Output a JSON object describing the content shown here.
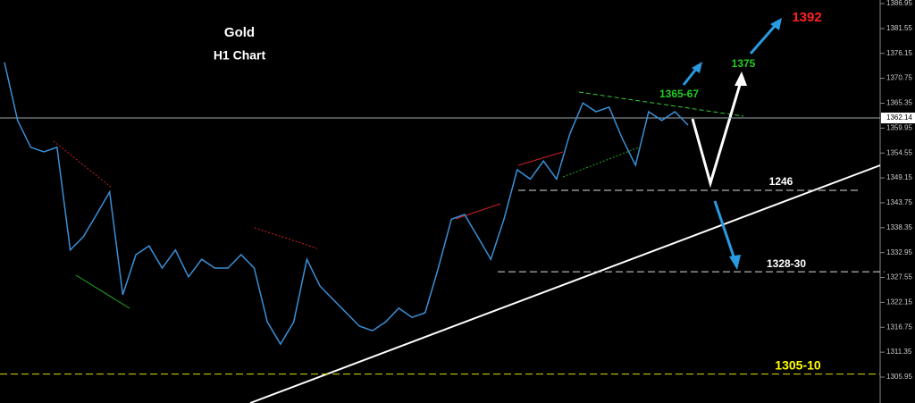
{
  "chart_data": {
    "type": "line",
    "title": "Gold",
    "subtitle": "H1 Chart",
    "values": [
      1374.2,
      1361.6,
      1355.8,
      1354.8,
      1355.8,
      1333.5,
      1336.4,
      1341.2,
      1346.1,
      1323.8,
      1332.5,
      1334.4,
      1329.6,
      1333.5,
      1327.7,
      1331.5,
      1329.6,
      1329.6,
      1332.5,
      1329.6,
      1317.9,
      1313.1,
      1317.9,
      1331.5,
      1325.7,
      1322.8,
      1319.9,
      1317.0,
      1316.0,
      1317.9,
      1320.9,
      1318.9,
      1319.9,
      1329.6,
      1340.2,
      1341.2,
      1336.4,
      1331.5,
      1340.2,
      1350.9,
      1348.9,
      1352.8,
      1348.9,
      1358.6,
      1365.4,
      1363.5,
      1364.5,
      1357.7,
      1351.9,
      1363.5,
      1361.6,
      1363.5,
      1360.6
    ],
    "color": "#3a8fd6",
    "ylim": [
      1300.33,
      1387.73
    ],
    "yticks": [
      1386.95,
      1381.55,
      1376.15,
      1370.75,
      1365.35,
      1359.95,
      1354.55,
      1349.15,
      1343.75,
      1338.35,
      1332.95,
      1327.55,
      1322.15,
      1316.75,
      1311.35,
      1305.95
    ],
    "current_price": 1362.14,
    "levels": [
      {
        "price": 1346.45,
        "color": "#dddddd"
      },
      {
        "price": 1328.8,
        "color": "#dddddd"
      },
      {
        "price": 1306.6,
        "color": "#e0e000"
      }
    ],
    "annotations": [
      {
        "text": "1392",
        "color": "#ff2020"
      },
      {
        "text": "1375",
        "color": "#22cc22"
      },
      {
        "text": "1365-67",
        "color": "#22cc22"
      },
      {
        "text": "1246",
        "color": "#ffffff"
      },
      {
        "text": "1328-30",
        "color": "#ffffff"
      },
      {
        "text": "1305-10",
        "color": "#ffff00"
      }
    ]
  }
}
